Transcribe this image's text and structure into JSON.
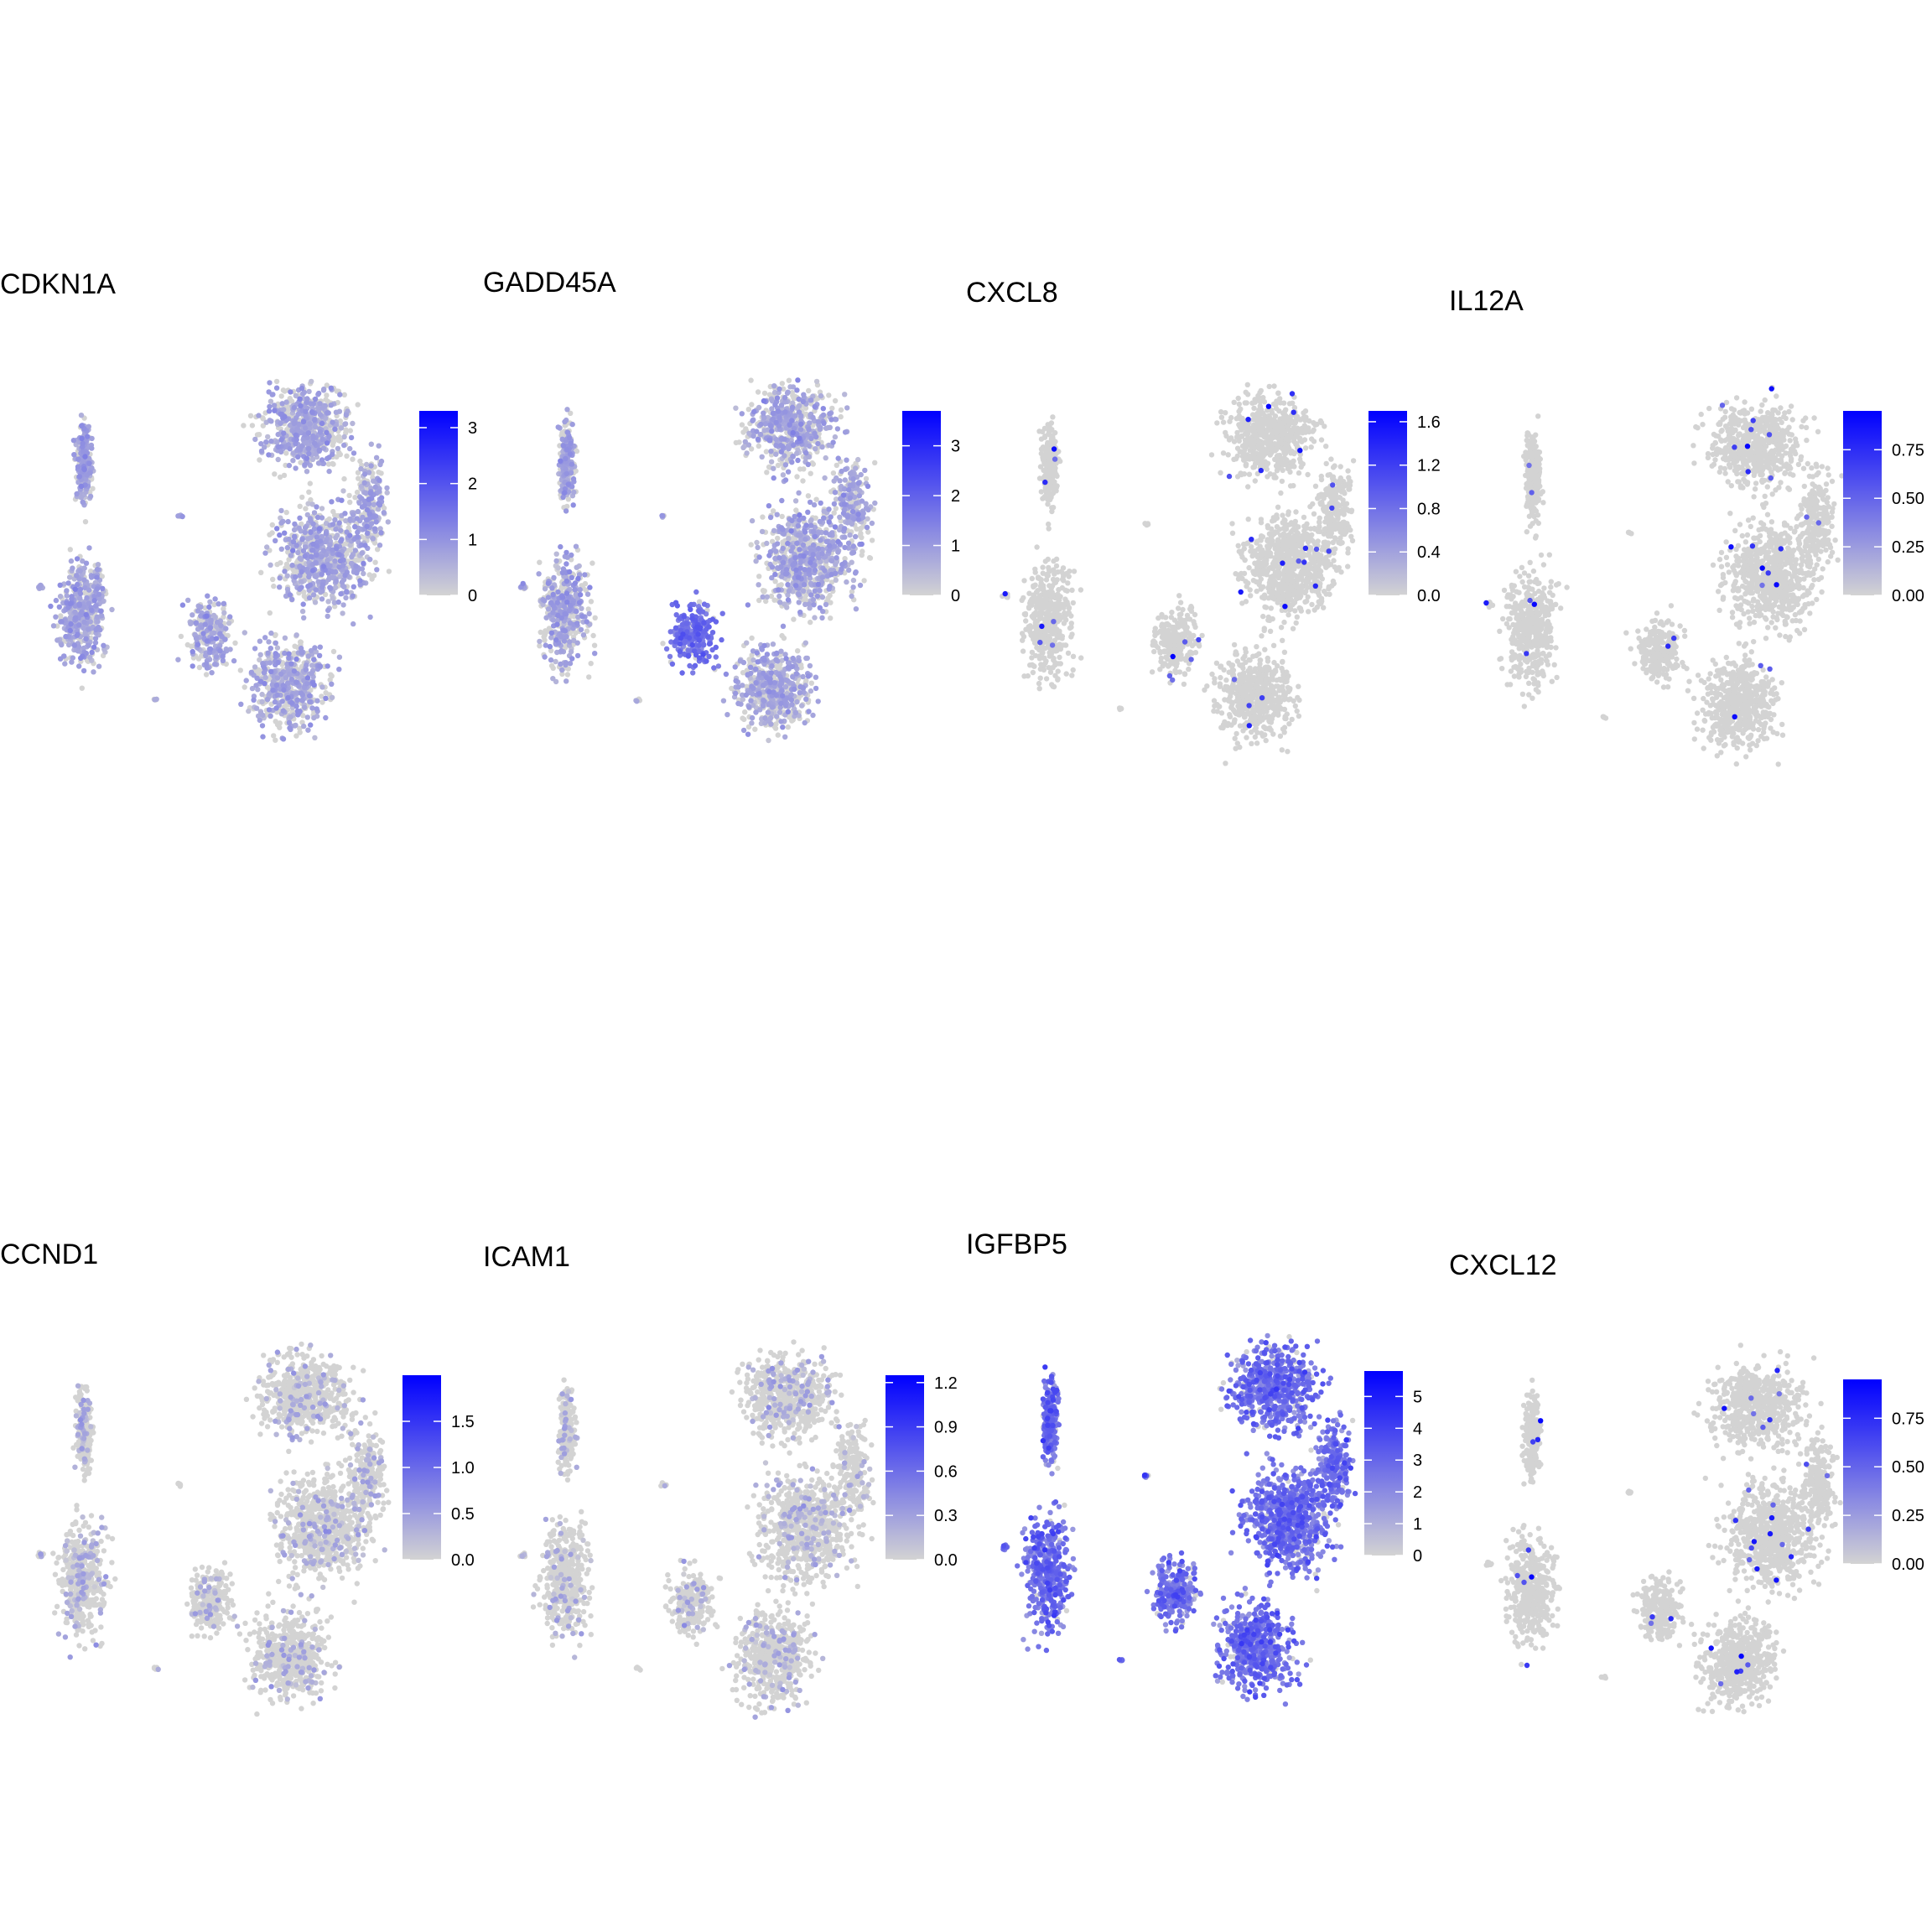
{
  "colors": {
    "low": "#d3d3d3",
    "high": "#0000ff",
    "background": "#ffffff"
  },
  "chart_data": [
    {
      "type": "scatter",
      "title": "CDKN1A",
      "color_range": [
        0,
        3.3
      ],
      "color_ticks": [
        0,
        1,
        2,
        3
      ],
      "tick_labels": [
        "0",
        "1",
        "2",
        "3"
      ],
      "expression": "moderate",
      "left_bias": 1.25,
      "hotspots": []
    },
    {
      "type": "scatter",
      "title": "GADD45A",
      "color_range": [
        0,
        3.7
      ],
      "color_ticks": [
        0,
        1,
        2,
        3
      ],
      "tick_labels": [
        "0",
        "1",
        "2",
        "3"
      ],
      "expression": "moderate",
      "left_bias": 1.0,
      "hotspots": [
        "right-arm"
      ]
    },
    {
      "type": "scatter",
      "title": "CXCL8",
      "color_range": [
        0,
        1.7
      ],
      "color_ticks": [
        0,
        0.4,
        0.8,
        1.2,
        1.6
      ],
      "tick_labels": [
        "0.0",
        "0.4",
        "0.8",
        "1.2",
        "1.6"
      ],
      "expression": "sparse",
      "left_bias": 1.0,
      "hotspots": []
    },
    {
      "type": "scatter",
      "title": "IL12A",
      "color_range": [
        0,
        0.95
      ],
      "color_ticks": [
        0,
        0.25,
        0.5,
        0.75
      ],
      "tick_labels": [
        "0.00",
        "0.25",
        "0.50",
        "0.75"
      ],
      "expression": "sparse",
      "left_bias": 1.0,
      "hotspots": []
    },
    {
      "type": "scatter",
      "title": "CCND1",
      "color_range": [
        0,
        2.0
      ],
      "color_ticks": [
        0,
        0.5,
        1.0,
        1.5
      ],
      "tick_labels": [
        "0.0",
        "0.5",
        "1.0",
        "1.5"
      ],
      "expression": "low",
      "left_bias": 1.4,
      "hotspots": []
    },
    {
      "type": "scatter",
      "title": "ICAM1",
      "color_range": [
        0,
        1.25
      ],
      "color_ticks": [
        0,
        0.3,
        0.6,
        0.9,
        1.2
      ],
      "tick_labels": [
        "0.0",
        "0.3",
        "0.6",
        "0.9",
        "1.2"
      ],
      "expression": "low",
      "left_bias": 0.8,
      "hotspots": []
    },
    {
      "type": "scatter",
      "title": "IGFBP5",
      "color_range": [
        0,
        5.8
      ],
      "color_ticks": [
        0,
        1,
        2,
        3,
        4,
        5
      ],
      "tick_labels": [
        "0",
        "1",
        "2",
        "3",
        "4",
        "5"
      ],
      "expression": "high",
      "left_bias": 1.0,
      "hotspots": []
    },
    {
      "type": "scatter",
      "title": "CXCL12",
      "color_range": [
        0,
        0.95
      ],
      "color_ticks": [
        0,
        0.25,
        0.5,
        0.75
      ],
      "tick_labels": [
        "0.00",
        "0.25",
        "0.50",
        "0.75"
      ],
      "expression": "sparse",
      "left_bias": 1.0,
      "hotspots": []
    }
  ]
}
